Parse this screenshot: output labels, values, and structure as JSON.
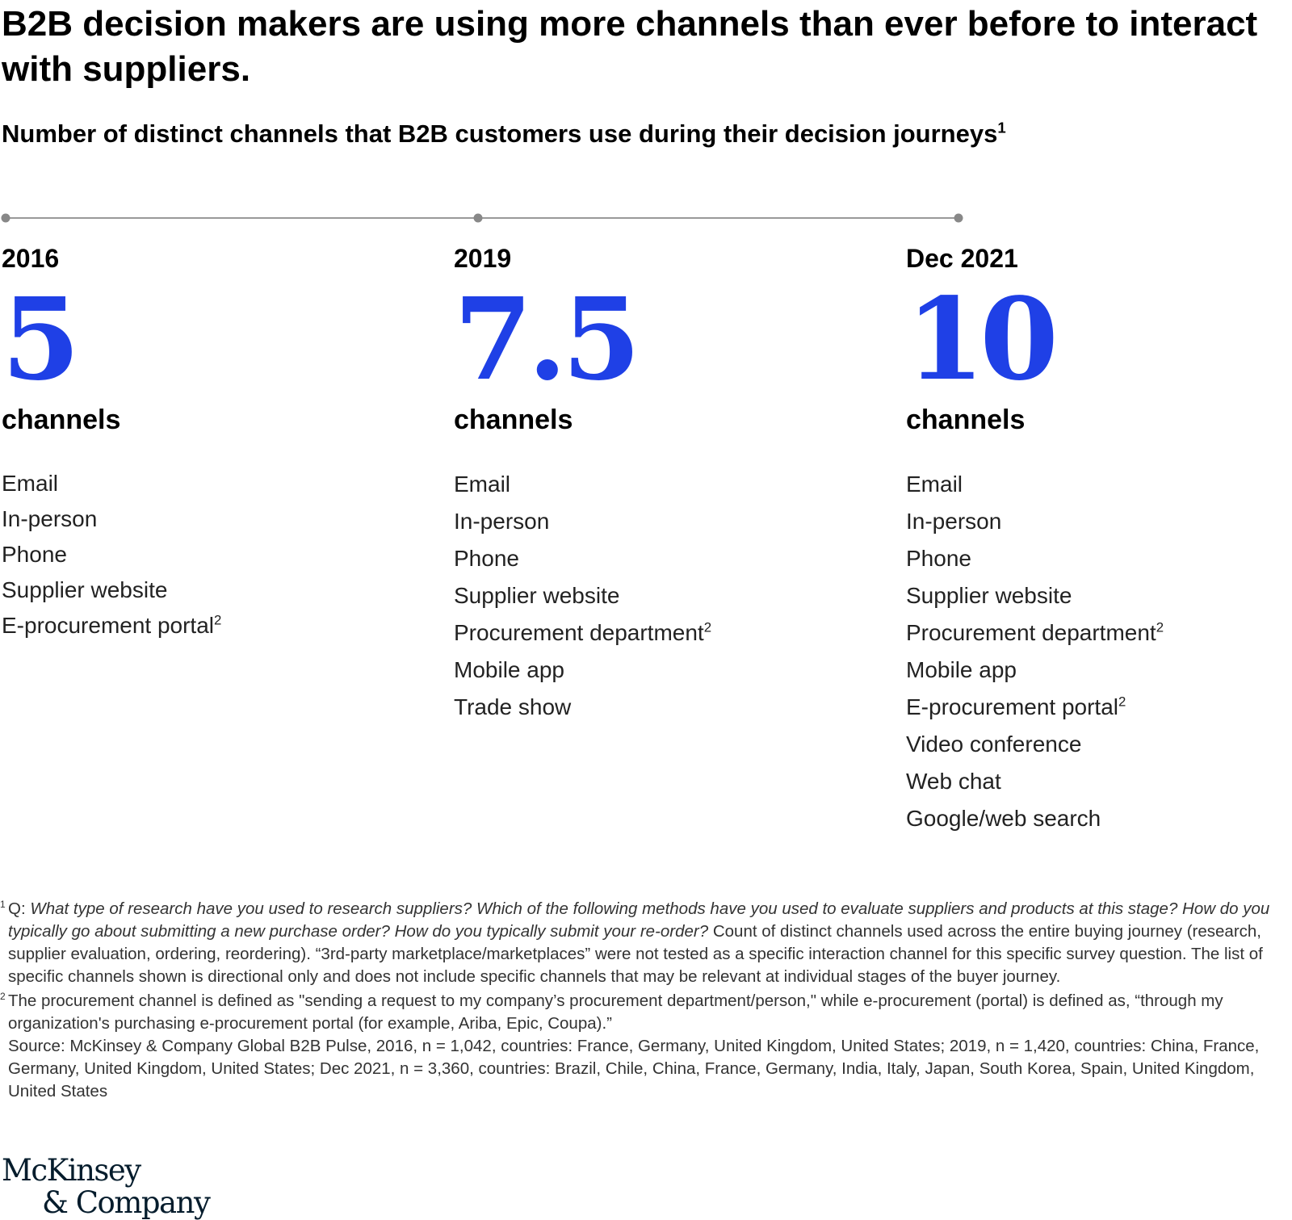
{
  "title": "B2B decision makers are using more channels than ever before to interact with suppliers.",
  "subtitle": "Number of distinct channels that B2B customers use during their decision journeys",
  "subtitle_footnote": "1",
  "colors": {
    "accent": "#1f40e6",
    "timeline": "#999999"
  },
  "chart_data": {
    "type": "table",
    "unit": "channels",
    "periods": [
      {
        "label": "2016",
        "value": 5,
        "value_text": "5",
        "unit": "channels",
        "channels": [
          {
            "name": "Email",
            "fn": ""
          },
          {
            "name": "In-person",
            "fn": ""
          },
          {
            "name": "Phone",
            "fn": ""
          },
          {
            "name": "Supplier website",
            "fn": ""
          },
          {
            "name": "E-procurement portal",
            "fn": "2"
          }
        ]
      },
      {
        "label": "2019",
        "value": 7.5,
        "value_text": "7.5",
        "unit": "channels",
        "channels": [
          {
            "name": "Email",
            "fn": ""
          },
          {
            "name": "In-person",
            "fn": ""
          },
          {
            "name": "Phone",
            "fn": ""
          },
          {
            "name": "Supplier website",
            "fn": ""
          },
          {
            "name": "Procurement department",
            "fn": "2"
          },
          {
            "name": "Mobile app",
            "fn": ""
          },
          {
            "name": "Trade show",
            "fn": ""
          }
        ]
      },
      {
        "label": "Dec 2021",
        "value": 10,
        "value_text": "10",
        "unit": "channels",
        "channels": [
          {
            "name": "Email",
            "fn": ""
          },
          {
            "name": "In-person",
            "fn": ""
          },
          {
            "name": "Phone",
            "fn": ""
          },
          {
            "name": "Supplier website",
            "fn": ""
          },
          {
            "name": "Procurement department",
            "fn": "2"
          },
          {
            "name": "Mobile app",
            "fn": ""
          },
          {
            "name": "E-procurement portal",
            "fn": "2"
          },
          {
            "name": "Video conference",
            "fn": ""
          },
          {
            "name": "Web chat",
            "fn": ""
          },
          {
            "name": "Google/web search",
            "fn": ""
          }
        ]
      }
    ]
  },
  "footnotes": {
    "fn1_mark": "1",
    "fn1_lead": "Q: ",
    "fn1_question": "What type of research have you used to research suppliers? Which of the following methods have you used to evaluate suppliers and products at this stage? How do you typically go about submitting a new purchase order? How do you typically submit your re-order?",
    "fn1_text": " Count of distinct channels used across the entire buying journey (research, supplier evaluation, ordering, reordering). “3rd-party marketplace/marketplaces” were not tested as a specific interaction channel for this specific survey question. The list of specific channels shown is directional only and does not include specific channels that may be relevant at individual stages of the buyer journey.",
    "fn2_mark": "2",
    "fn2_text": "The procurement channel is defined as \"sending a request to my company’s procurement department/person,\" while e-procurement (portal) is defined as, “through my organization's purchasing e-procurement portal (for example, Ariba, Epic, Coupa).”",
    "source": "Source: McKinsey & Company Global B2B Pulse, 2016, n = 1,042, countries: France, Germany, United Kingdom, United States; 2019, n = 1,420, countries: China, France, Germany, United Kingdom, United States; Dec 2021, n = 3,360, countries: Brazil, Chile, China, France, Germany, India, Italy, Japan, South Korea, Spain, United Kingdom, United States"
  },
  "logo": {
    "line1": "McKinsey",
    "line2": "& Company"
  }
}
